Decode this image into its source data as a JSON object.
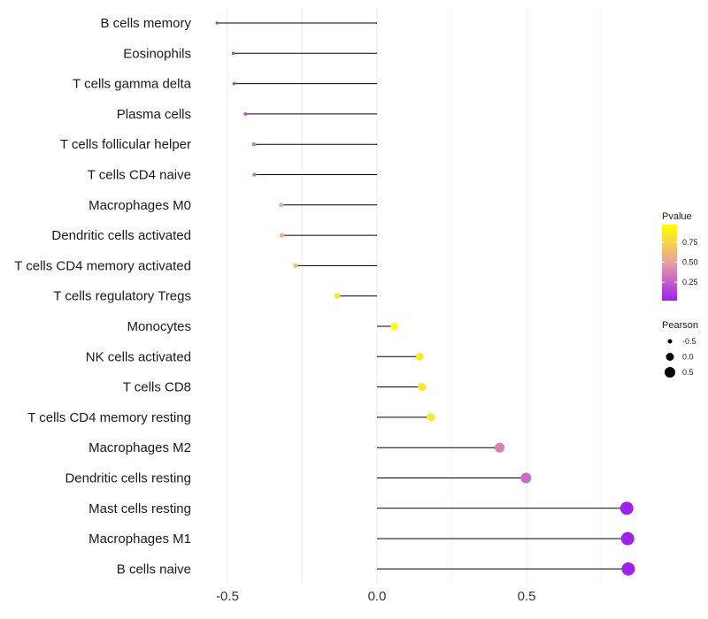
{
  "chart_data": {
    "type": "lollipop",
    "title": "",
    "xlabel": "",
    "ylabel": "",
    "xlim": [
      -0.7,
      1.0
    ],
    "x_ticks": [
      -0.5,
      0.0,
      0.5
    ],
    "x_tick_labels": [
      "-0.5",
      "0.0",
      "0.5"
    ],
    "grid": true,
    "categories": [
      "B cells memory",
      "Eosinophils",
      "T cells gamma delta",
      "Plasma cells",
      "T cells follicular helper",
      "T cells CD4 naive",
      "Macrophages M0",
      "Dendritic cells activated",
      "T cells CD4 memory activated",
      "T cells regulatory  Tregs",
      "Monocytes",
      "NK cells activated",
      "T cells CD8",
      "T cells CD4 memory resting",
      "Macrophages M2",
      "Dendritic cells resting",
      "Mast cells resting",
      "Macrophages M1",
      "B cells naive"
    ],
    "pearson": [
      -0.535,
      -0.48,
      -0.478,
      -0.44,
      -0.412,
      -0.41,
      -0.32,
      -0.318,
      -0.272,
      -0.133,
      0.058,
      0.143,
      0.15,
      0.18,
      0.41,
      0.498,
      0.835,
      0.838,
      0.84
    ],
    "pvalue": [
      0.08,
      0.14,
      0.15,
      0.22,
      0.3,
      0.3,
      0.55,
      0.55,
      0.65,
      0.85,
      0.97,
      0.88,
      0.87,
      0.85,
      0.38,
      0.3,
      0.02,
      0.02,
      0.02
    ],
    "legend": {
      "color_title": "Pvalue",
      "color_ticks": [
        "0.75",
        "0.50",
        "0.25"
      ],
      "color_tick_values": [
        0.75,
        0.5,
        0.25
      ],
      "color_range": [
        0.02,
        0.97
      ],
      "size_title": "Pearson",
      "size_entries": [
        "-0.5",
        "0.0",
        "0.5"
      ],
      "size_entry_values": [
        -0.5,
        0.0,
        0.5
      ],
      "placement": "right"
    },
    "colors": {
      "low": "#a020f0",
      "mid": "#e8a0a0",
      "high": "#ffff00",
      "segment": "#000000",
      "grid": "#ebebeb"
    }
  }
}
